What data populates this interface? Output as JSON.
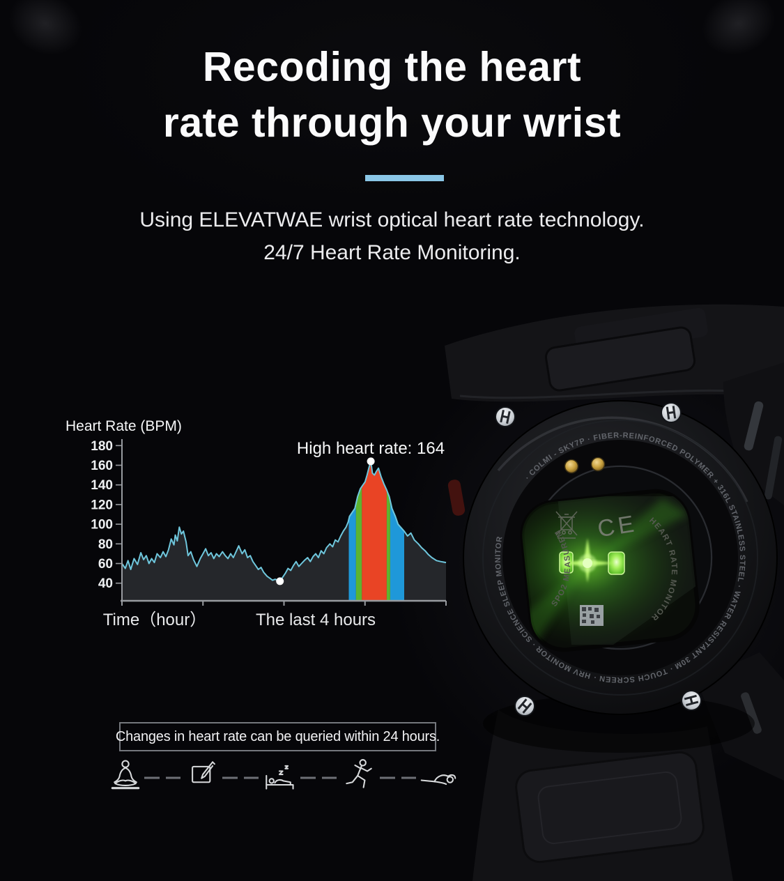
{
  "header": {
    "title_line1": "Recoding the heart",
    "title_line2": "rate through your wrist",
    "divider_color": "#8ac6e6",
    "subtitle_line1": "Using ELEVATWAE wrist optical heart rate technology.",
    "subtitle_line2": "24/7 Heart Rate Monitoring."
  },
  "chart_data": {
    "type": "area",
    "title": "Heart Rate (BPM)",
    "xlabel_left": "Time（hour）",
    "xlabel_right": "The last 4 hours",
    "annotation": "High heart rate: 164",
    "x_range_hours": [
      0,
      24
    ],
    "x_tick_count": 5,
    "y_ticks": [
      180,
      160,
      140,
      120,
      100,
      80,
      60,
      40
    ],
    "grid": false,
    "legend": "none",
    "line_color": "#6fc7dd",
    "fill_color": "#25272b",
    "axis_color": "#989ba0",
    "tick_text_color": "#eef0f2",
    "bands": [
      {
        "from": 16.8,
        "to": 17.33,
        "color": "#1f98d9"
      },
      {
        "from": 17.33,
        "to": 17.77,
        "color": "#5cb430"
      },
      {
        "from": 17.77,
        "to": 19.61,
        "color": "#e94425"
      },
      {
        "from": 19.61,
        "to": 19.87,
        "color": "#5cb430"
      },
      {
        "from": 19.87,
        "to": 20.9,
        "color": "#1f98d9"
      }
    ],
    "markers": [
      {
        "name": "low",
        "hour": 11.7,
        "bpm": 42
      },
      {
        "name": "peak",
        "hour": 18.43,
        "bpm": 164
      }
    ],
    "series": [
      {
        "name": "Heart rate",
        "points": [
          [
            0,
            60
          ],
          [
            0.25,
            55
          ],
          [
            0.45,
            63
          ],
          [
            0.65,
            54
          ],
          [
            0.9,
            65
          ],
          [
            1.15,
            59
          ],
          [
            1.4,
            71
          ],
          [
            1.6,
            64
          ],
          [
            1.8,
            68
          ],
          [
            2,
            60
          ],
          [
            2.2,
            65
          ],
          [
            2.4,
            61
          ],
          [
            2.6,
            70
          ],
          [
            2.85,
            66
          ],
          [
            3.05,
            72
          ],
          [
            3.25,
            67
          ],
          [
            3.45,
            74
          ],
          [
            3.65,
            85
          ],
          [
            3.85,
            79
          ],
          [
            3.95,
            89
          ],
          [
            4.1,
            83
          ],
          [
            4.25,
            97
          ],
          [
            4.4,
            90
          ],
          [
            4.55,
            93
          ],
          [
            4.75,
            82
          ],
          [
            4.9,
            68
          ],
          [
            5.1,
            72
          ],
          [
            5.3,
            64
          ],
          [
            5.55,
            57
          ],
          [
            5.8,
            65
          ],
          [
            6,
            70
          ],
          [
            6.2,
            75
          ],
          [
            6.4,
            68
          ],
          [
            6.6,
            71
          ],
          [
            6.8,
            65
          ],
          [
            7,
            70
          ],
          [
            7.2,
            67
          ],
          [
            7.45,
            72
          ],
          [
            7.65,
            68
          ],
          [
            7.85,
            65
          ],
          [
            8.05,
            70
          ],
          [
            8.25,
            66
          ],
          [
            8.45,
            72
          ],
          [
            8.65,
            78
          ],
          [
            8.9,
            70
          ],
          [
            9.1,
            74
          ],
          [
            9.3,
            66
          ],
          [
            9.5,
            68
          ],
          [
            9.7,
            62
          ],
          [
            9.9,
            58
          ],
          [
            10.1,
            54
          ],
          [
            10.3,
            56
          ],
          [
            10.5,
            51
          ],
          [
            10.75,
            47
          ],
          [
            10.95,
            45
          ],
          [
            11.15,
            43
          ],
          [
            11.35,
            44
          ],
          [
            11.7,
            42
          ],
          [
            11.9,
            46
          ],
          [
            12.1,
            50
          ],
          [
            12.3,
            55
          ],
          [
            12.5,
            53
          ],
          [
            12.7,
            58
          ],
          [
            12.9,
            62
          ],
          [
            13.1,
            57
          ],
          [
            13.3,
            60
          ],
          [
            13.5,
            63
          ],
          [
            13.75,
            66
          ],
          [
            13.95,
            62
          ],
          [
            14.15,
            67
          ],
          [
            14.35,
            70
          ],
          [
            14.55,
            66
          ],
          [
            14.75,
            73
          ],
          [
            14.95,
            70
          ],
          [
            15.15,
            76
          ],
          [
            15.4,
            80
          ],
          [
            15.6,
            77
          ],
          [
            15.8,
            84
          ],
          [
            16,
            82
          ],
          [
            16.2,
            88
          ],
          [
            16.4,
            93
          ],
          [
            16.6,
            97
          ],
          [
            16.75,
            102
          ],
          [
            16.85,
            108
          ],
          [
            17.05,
            112
          ],
          [
            17.25,
            116
          ],
          [
            17.45,
            128
          ],
          [
            17.65,
            136
          ],
          [
            17.85,
            140
          ],
          [
            18,
            143
          ],
          [
            18.15,
            150
          ],
          [
            18.3,
            158
          ],
          [
            18.43,
            164
          ],
          [
            18.55,
            152
          ],
          [
            18.7,
            150
          ],
          [
            18.85,
            154
          ],
          [
            19,
            157
          ],
          [
            19.2,
            148
          ],
          [
            19.4,
            141
          ],
          [
            19.6,
            135
          ],
          [
            19.8,
            128
          ],
          [
            20,
            116
          ],
          [
            20.25,
            108
          ],
          [
            20.45,
            100
          ],
          [
            20.7,
            96
          ],
          [
            20.9,
            93
          ],
          [
            21.15,
            88
          ],
          [
            21.4,
            91
          ],
          [
            21.65,
            84
          ],
          [
            21.95,
            80
          ],
          [
            22.2,
            76
          ],
          [
            22.45,
            73
          ],
          [
            22.7,
            69
          ],
          [
            22.95,
            66
          ],
          [
            23.3,
            63
          ],
          [
            23.6,
            62
          ],
          [
            24,
            61
          ]
        ]
      }
    ]
  },
  "watch": {
    "ring_text": "· COLMI - SKY7P · FIBER-REINFORCED POLYMER + 316L STAINLESS STEEL · WATER RESISTANT 30M · TOUCH SCREEN · HRV MONITOR · SCIENCE SLEEP MONITOR",
    "inner_text_right": "HEART RATE MONITOR",
    "inner_text_left": "SPO2 MEASUREMENT",
    "ce_mark": "CE"
  },
  "footer": {
    "note": "Changes in heart rate can be queried within 24 hours.",
    "icons": [
      "meditation",
      "writing",
      "sleep",
      "running",
      "swimming"
    ]
  }
}
